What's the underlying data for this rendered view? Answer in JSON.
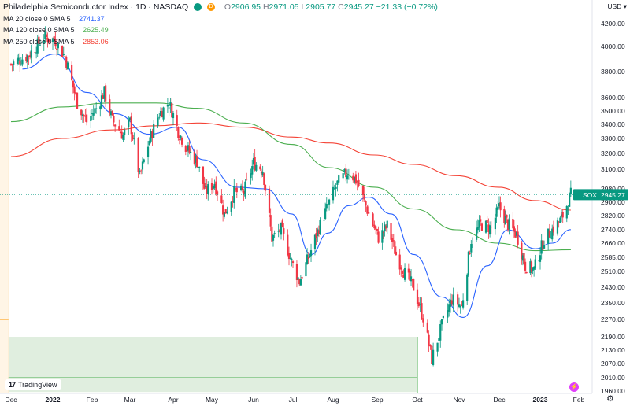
{
  "header": {
    "title": "Philadelphia Semiconductor Index · 1D · NASDAQ",
    "badge_green": "",
    "badge_orange": "D",
    "ohlc": {
      "o_label": "O",
      "o": "2906.95",
      "h_label": "H",
      "h": "2971.05",
      "l_label": "L",
      "l": "2905.77",
      "c_label": "C",
      "c": "2945.27",
      "change": "−21.33 (−0.72%)"
    }
  },
  "indicators": [
    {
      "label": "MA 20 close 0 SMA 5",
      "value": "2741.37",
      "color": "#2962ff"
    },
    {
      "label": "MA 120 close 0 SMA 5",
      "value": "2625.49",
      "color": "#4caf50"
    },
    {
      "label": "MA 250 close 0 SMA 5",
      "value": "2853.06",
      "color": "#f44336"
    }
  ],
  "currency": "USD",
  "currency_arrow": "▾",
  "price_tag": {
    "symbol": "SOX",
    "value": "2945.27"
  },
  "logo": "TradingView",
  "logo_mark": "17",
  "event_icon": "⚡",
  "gear_icon": "⚙",
  "colors": {
    "up": "#089981",
    "down": "#f23645",
    "ma20": "#2962ff",
    "ma120": "#4caf50",
    "ma250": "#f44336"
  },
  "chart_data": {
    "type": "candlestick",
    "y_ticks": [
      4200,
      4000,
      3800,
      3600,
      3500,
      3400,
      3300,
      3200,
      3100,
      2980,
      2900,
      2820,
      2740,
      2660,
      2585,
      2510,
      2430,
      2350,
      2270,
      2190,
      2130,
      2070,
      2010,
      1960
    ],
    "y_tick_labels": [
      "4200.00",
      "4000.00",
      "3800.00",
      "3600.00",
      "3500.00",
      "3400.00",
      "3300.00",
      "3200.00",
      "3100.00",
      "2980.00",
      "2900.00",
      "2820.00",
      "2740.00",
      "2660.00",
      "2585.00",
      "2510.00",
      "2430.00",
      "2350.00",
      "2270.00",
      "2190.00",
      "2130.00",
      "2070.00",
      "2010.00",
      "1960.00"
    ],
    "x_labels": [
      "Dec",
      "2022",
      "Feb",
      "Mar",
      "Apr",
      "May",
      "Jun",
      "Jul",
      "Aug",
      "Sep",
      "Oct",
      "Nov",
      "Dec",
      "2023",
      "Feb"
    ],
    "x_label_dates": [
      "2021-12-01",
      "2022-01-03",
      "2022-02-01",
      "2022-03-01",
      "2022-04-01",
      "2022-05-02",
      "2022-06-01",
      "2022-07-01",
      "2022-08-01",
      "2022-09-01",
      "2022-10-03",
      "2022-11-01",
      "2022-12-01",
      "2023-01-03",
      "2023-02-01"
    ],
    "last_price": 2945.27,
    "close_path": [
      [
        "2021-12-01",
        3860
      ],
      [
        "2021-12-15",
        3930
      ],
      [
        "2021-12-27",
        4080
      ],
      [
        "2022-01-04",
        4060
      ],
      [
        "2022-01-12",
        3920
      ],
      [
        "2022-01-21",
        3560
      ],
      [
        "2022-01-28",
        3420
      ],
      [
        "2022-02-04",
        3520
      ],
      [
        "2022-02-10",
        3640
      ],
      [
        "2022-02-16",
        3430
      ],
      [
        "2022-02-24",
        3320
      ],
      [
        "2022-03-01",
        3420
      ],
      [
        "2022-03-08",
        3050
      ],
      [
        "2022-03-15",
        3290
      ],
      [
        "2022-03-22",
        3480
      ],
      [
        "2022-03-29",
        3560
      ],
      [
        "2022-04-05",
        3350
      ],
      [
        "2022-04-12",
        3230
      ],
      [
        "2022-04-20",
        3150
      ],
      [
        "2022-04-27",
        2960
      ],
      [
        "2022-05-04",
        3020
      ],
      [
        "2022-05-11",
        2830
      ],
      [
        "2022-05-18",
        2960
      ],
      [
        "2022-05-25",
        2960
      ],
      [
        "2022-06-01",
        3140
      ],
      [
        "2022-06-08",
        3100
      ],
      [
        "2022-06-15",
        2690
      ],
      [
        "2022-06-22",
        2740
      ],
      [
        "2022-06-30",
        2560
      ],
      [
        "2022-07-06",
        2460
      ],
      [
        "2022-07-14",
        2600
      ],
      [
        "2022-07-21",
        2750
      ],
      [
        "2022-07-28",
        2880
      ],
      [
        "2022-08-04",
        3010
      ],
      [
        "2022-08-12",
        3090
      ],
      [
        "2022-08-18",
        3020
      ],
      [
        "2022-08-26",
        2830
      ],
      [
        "2022-09-02",
        2690
      ],
      [
        "2022-09-09",
        2760
      ],
      [
        "2022-09-16",
        2600
      ],
      [
        "2022-09-23",
        2500
      ],
      [
        "2022-09-30",
        2430
      ],
      [
        "2022-10-07",
        2280
      ],
      [
        "2022-10-13",
        2090
      ],
      [
        "2022-10-20",
        2240
      ],
      [
        "2022-10-27",
        2370
      ],
      [
        "2022-11-03",
        2330
      ],
      [
        "2022-11-10",
        2680
      ],
      [
        "2022-11-17",
        2770
      ],
      [
        "2022-11-25",
        2750
      ],
      [
        "2022-12-01",
        2870
      ],
      [
        "2022-12-08",
        2770
      ],
      [
        "2022-12-15",
        2710
      ],
      [
        "2022-12-22",
        2540
      ],
      [
        "2022-12-29",
        2520
      ],
      [
        "2023-01-06",
        2680
      ],
      [
        "2023-01-12",
        2740
      ],
      [
        "2023-01-19",
        2800
      ],
      [
        "2023-01-26",
        2945
      ]
    ],
    "ma20_path": [
      [
        "2021-12-10",
        3820
      ],
      [
        "2022-01-05",
        3940
      ],
      [
        "2022-01-28",
        3640
      ],
      [
        "2022-02-18",
        3480
      ],
      [
        "2022-03-15",
        3330
      ],
      [
        "2022-04-05",
        3380
      ],
      [
        "2022-04-25",
        3160
      ],
      [
        "2022-05-20",
        2990
      ],
      [
        "2022-06-10",
        2980
      ],
      [
        "2022-06-30",
        2830
      ],
      [
        "2022-07-15",
        2600
      ],
      [
        "2022-07-28",
        2720
      ],
      [
        "2022-08-12",
        2880
      ],
      [
        "2022-08-26",
        2930
      ],
      [
        "2022-09-12",
        2830
      ],
      [
        "2022-09-30",
        2600
      ],
      [
        "2022-10-20",
        2380
      ],
      [
        "2022-11-04",
        2280
      ],
      [
        "2022-11-22",
        2540
      ],
      [
        "2022-12-08",
        2740
      ],
      [
        "2022-12-30",
        2630
      ],
      [
        "2023-01-12",
        2660
      ],
      [
        "2023-01-26",
        2741
      ]
    ],
    "ma120_path": [
      [
        "2021-12-01",
        3420
      ],
      [
        "2022-01-10",
        3530
      ],
      [
        "2022-02-15",
        3560
      ],
      [
        "2022-03-20",
        3560
      ],
      [
        "2022-04-20",
        3520
      ],
      [
        "2022-05-25",
        3410
      ],
      [
        "2022-06-30",
        3260
      ],
      [
        "2022-07-29",
        3110
      ],
      [
        "2022-08-30",
        2990
      ],
      [
        "2022-09-30",
        2860
      ],
      [
        "2022-10-30",
        2740
      ],
      [
        "2022-11-30",
        2660
      ],
      [
        "2022-12-30",
        2620
      ],
      [
        "2023-01-26",
        2625
      ]
    ],
    "ma250_path": [
      [
        "2021-12-01",
        3180
      ],
      [
        "2022-01-10",
        3300
      ],
      [
        "2022-02-15",
        3360
      ],
      [
        "2022-03-20",
        3390
      ],
      [
        "2022-04-20",
        3410
      ],
      [
        "2022-05-25",
        3380
      ],
      [
        "2022-06-30",
        3310
      ],
      [
        "2022-07-29",
        3270
      ],
      [
        "2022-08-30",
        3190
      ],
      [
        "2022-09-30",
        3130
      ],
      [
        "2022-10-30",
        3060
      ],
      [
        "2022-11-30",
        2990
      ],
      [
        "2022-12-30",
        2910
      ],
      [
        "2023-01-26",
        2853
      ]
    ],
    "highlight_band": {
      "from": "2021-11-29",
      "to": "2022-10-03",
      "low": 1980,
      "high": 2190
    },
    "arrows": [
      {
        "at": "2021-11-29",
        "price": 2270
      },
      {
        "from": "2021-11-29",
        "to": "2022-10-03",
        "price": 2010
      }
    ],
    "highlight_start": "2021-11-29",
    "grid": false
  }
}
